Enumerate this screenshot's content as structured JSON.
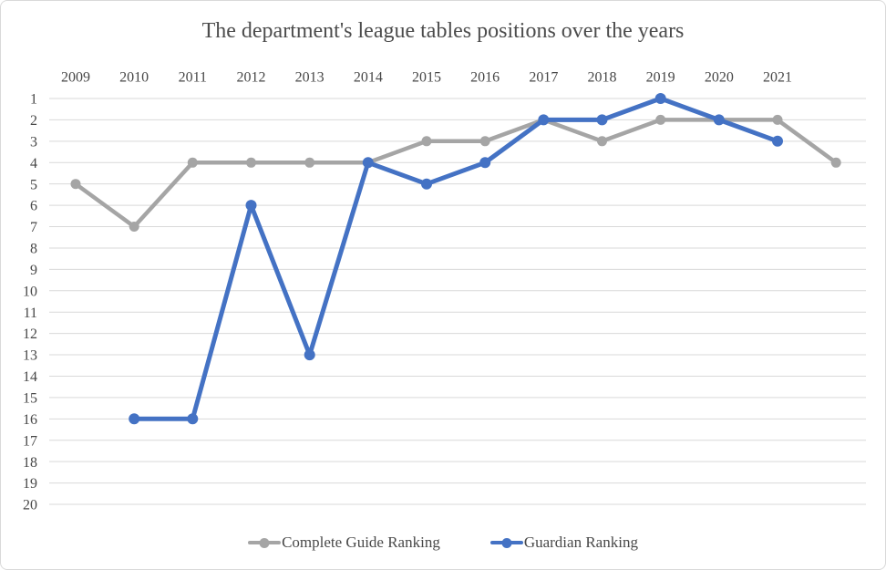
{
  "chart_data": {
    "type": "line",
    "title": "The department's league tables positions over the years",
    "categories": [
      "2009",
      "2010",
      "2011",
      "2012",
      "2013",
      "2014",
      "2015",
      "2016",
      "2017",
      "2018",
      "2019",
      "2020",
      "2021",
      ""
    ],
    "x_axis": {
      "label_side": "top"
    },
    "y_axis": {
      "min": 1,
      "max": 20,
      "tick_step": 1,
      "inverted": true,
      "label_side": "left"
    },
    "grid": "horizontal",
    "legend_position": "bottom",
    "series": [
      {
        "name": "Complete Guide Ranking",
        "color": "#A5A5A5",
        "values": [
          5,
          7,
          4,
          4,
          4,
          4,
          3,
          3,
          2,
          3,
          2,
          2,
          2,
          4
        ]
      },
      {
        "name": "Guardian Ranking",
        "color": "#4472C4",
        "values": [
          null,
          16,
          16,
          6,
          13,
          4,
          5,
          4,
          2,
          2,
          1,
          2,
          3,
          null
        ]
      }
    ]
  },
  "colors": {
    "gridline": "#D9D9D9",
    "axis_text": "#474747",
    "title_text": "#4C4C4C",
    "background": "#FFFFFF"
  }
}
